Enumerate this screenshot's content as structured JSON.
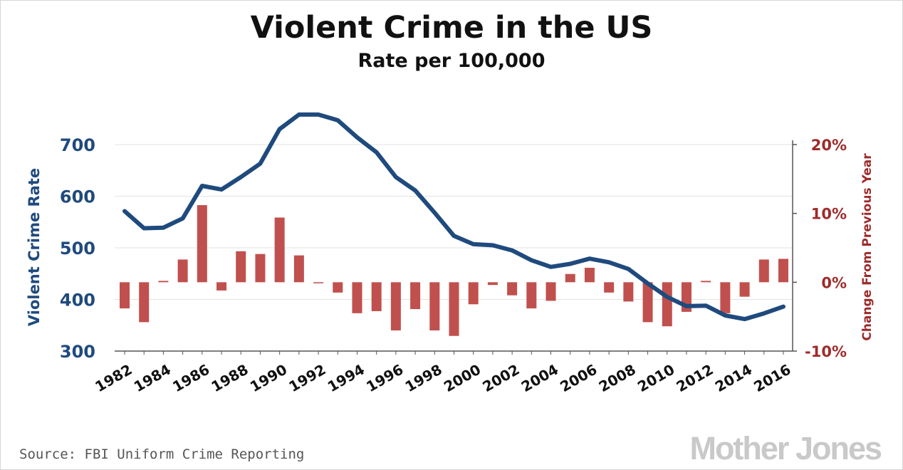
{
  "title": "Violent Crime in the US",
  "subtitle": "Rate per 100,000",
  "source": "Source: FBI Uniform Crime Reporting",
  "brand": "Mother Jones",
  "colors": {
    "line": "#1f4a7e",
    "bar": "#c0504d",
    "left_axis_text": "#1f4a7e",
    "right_axis_text": "#9e2b2b",
    "grid": "#e3e3e3",
    "axis": "#555555",
    "brand": "#c9c9c9"
  },
  "chart_data": {
    "type": "bar+line",
    "x": [
      1982,
      1983,
      1984,
      1985,
      1986,
      1987,
      1988,
      1989,
      1990,
      1991,
      1992,
      1993,
      1994,
      1995,
      1996,
      1997,
      1998,
      1999,
      2000,
      2001,
      2002,
      2003,
      2004,
      2005,
      2006,
      2007,
      2008,
      2009,
      2010,
      2011,
      2012,
      2013,
      2014,
      2015,
      2016
    ],
    "x_tick_labels": [
      "1982",
      "1984",
      "1986",
      "1988",
      "1990",
      "1992",
      "1994",
      "1996",
      "1998",
      "2000",
      "2002",
      "2004",
      "2006",
      "2008",
      "2010",
      "2012",
      "2014",
      "2016"
    ],
    "series": [
      {
        "axis": "left",
        "type": "line",
        "values": [
          571,
          538,
          539,
          557,
          620,
          613,
          637,
          663,
          730,
          758,
          758,
          747,
          714,
          685,
          637,
          611,
          568,
          523,
          507,
          505,
          495,
          476,
          463,
          469,
          479,
          472,
          459,
          431,
          405,
          387,
          388,
          369,
          362,
          373,
          386
        ]
      },
      {
        "axis": "right",
        "type": "bar",
        "values": [
          -3.8,
          -5.8,
          0.2,
          3.3,
          11.2,
          -1.2,
          4.5,
          4.1,
          9.4,
          3.9,
          -0.1,
          -1.5,
          -4.5,
          -4.2,
          -7.0,
          -3.9,
          -7.0,
          -7.8,
          -3.2,
          -0.4,
          -1.9,
          -3.8,
          -2.7,
          1.2,
          2.1,
          -1.5,
          -2.8,
          -5.8,
          -6.4,
          -4.3,
          0.2,
          -4.5,
          -2.1,
          3.3,
          3.4
        ]
      }
    ],
    "y_left": {
      "label": "Violent Crime Rate",
      "range": [
        300,
        700
      ],
      "ticks": [
        "700",
        "600",
        "500",
        "400",
        "300"
      ]
    },
    "y_right": {
      "label": "Change From Previous Year",
      "range": [
        -10,
        20
      ],
      "ticks": [
        "20%",
        "10%",
        "0%",
        "-10%"
      ]
    },
    "grid": true
  }
}
